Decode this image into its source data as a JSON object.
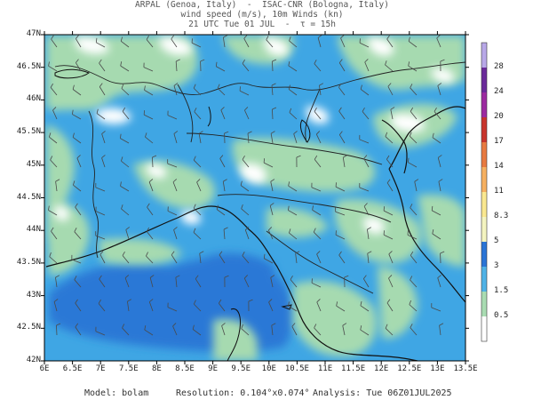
{
  "header": {
    "line1": "ARPAL (Genoa, Italy)  -  ISAC-CNR (Bologna, Italy)",
    "line2": "wind speed (m/s), 10m Winds (kn)",
    "line3": "21 UTC Tue 01 JUL  -  τ = 15h"
  },
  "axes": {
    "lat_labels": [
      "47N",
      "46.5N",
      "46N",
      "45.5N",
      "45N",
      "44.5N",
      "44N",
      "43.5N",
      "43N",
      "42.5N",
      "42N"
    ],
    "lon_labels": [
      "6E",
      "6.5E",
      "7E",
      "7.5E",
      "8E",
      "8.5E",
      "9E",
      "9.5E",
      "10E",
      "10.5E",
      "11E",
      "11.5E",
      "12E",
      "12.5E",
      "13E",
      "13.5E"
    ],
    "lat_range": [
      42,
      47
    ],
    "lon_range": [
      6,
      13.5
    ]
  },
  "colorbar": {
    "levels": [
      "0.5",
      "1.5",
      "3",
      "5",
      "8.3",
      "11",
      "14",
      "17",
      "20",
      "24",
      "28"
    ],
    "colors": [
      "#ffffff",
      "#a9dcb2",
      "#4fb2e6",
      "#2a74d6",
      "#f4f4c0",
      "#fae890",
      "#f6b060",
      "#e87a40",
      "#c8342c",
      "#9c2aa0",
      "#6a2a9a",
      "#b8a8e8"
    ]
  },
  "footer": {
    "model": "Model: bolam",
    "resolution": "Resolution: 0.104°x0.074°",
    "analysis": "Analysis: Tue 06Z01JUL2025"
  }
}
